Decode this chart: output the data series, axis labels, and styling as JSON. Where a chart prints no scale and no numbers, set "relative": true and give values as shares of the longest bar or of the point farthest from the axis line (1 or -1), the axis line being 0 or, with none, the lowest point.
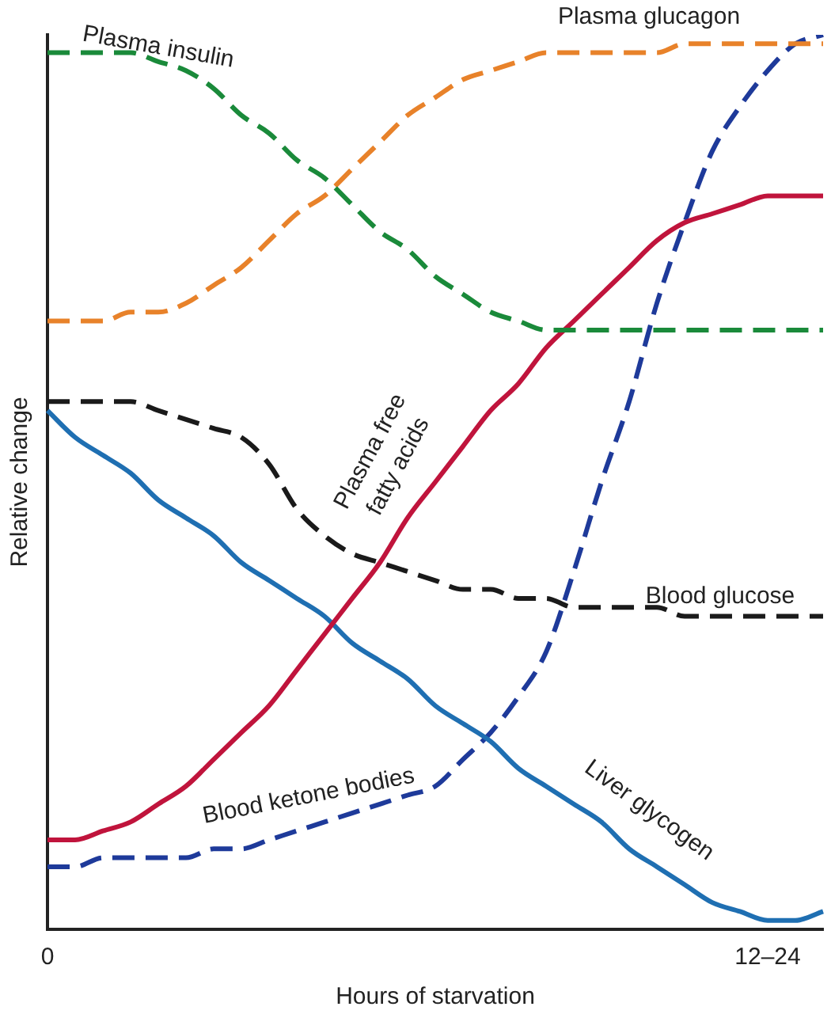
{
  "chart_data": {
    "type": "line",
    "relative": true,
    "xlabel": "Hours of starvation",
    "ylabel": "Relative change",
    "tick_labels": "x",
    "marker": "none",
    "categories": [
      "0",
      null,
      null,
      null,
      null,
      null,
      null,
      null,
      null,
      null,
      null,
      null,
      null,
      null,
      null,
      null,
      null,
      null,
      null,
      null,
      null,
      null,
      null,
      null,
      null,
      null,
      "12–24",
      null,
      null
    ],
    "series": [
      {
        "name": "Plasma insulin",
        "color": "#1a8a3a",
        "line_style": "dashed",
        "values": [
          0.98,
          0.98,
          0.98,
          0.98,
          0.97,
          0.96,
          0.94,
          0.91,
          0.89,
          0.86,
          0.84,
          0.81,
          0.78,
          0.76,
          0.73,
          0.71,
          0.69,
          0.68,
          0.67,
          0.67,
          0.67,
          0.67,
          0.67,
          0.67,
          0.67,
          0.67,
          0.67,
          0.67,
          0.67
        ]
      },
      {
        "name": "Plasma glucagon",
        "color": "#e8822a",
        "line_style": "dashed",
        "values": [
          0.68,
          0.68,
          0.68,
          0.69,
          0.69,
          0.7,
          0.72,
          0.74,
          0.77,
          0.8,
          0.82,
          0.85,
          0.88,
          0.91,
          0.93,
          0.95,
          0.96,
          0.97,
          0.98,
          0.98,
          0.98,
          0.98,
          0.98,
          0.99,
          0.99,
          0.99,
          0.99,
          0.99,
          0.99
        ]
      },
      {
        "name": "Plasma free fatty acids",
        "color": "#c0143c",
        "line_style": "solid",
        "values": [
          0.1,
          0.1,
          0.11,
          0.12,
          0.14,
          0.16,
          0.19,
          0.22,
          0.25,
          0.29,
          0.33,
          0.37,
          0.41,
          0.46,
          0.5,
          0.54,
          0.58,
          0.61,
          0.65,
          0.68,
          0.71,
          0.74,
          0.77,
          0.79,
          0.8,
          0.81,
          0.82,
          0.82,
          0.82
        ]
      },
      {
        "name": "Blood glucose",
        "color": "#1a1a1a",
        "line_style": "dashed",
        "values": [
          0.59,
          0.59,
          0.59,
          0.59,
          0.58,
          0.57,
          0.56,
          0.55,
          0.52,
          0.47,
          0.44,
          0.42,
          0.41,
          0.4,
          0.39,
          0.38,
          0.38,
          0.37,
          0.37,
          0.36,
          0.36,
          0.36,
          0.36,
          0.35,
          0.35,
          0.35,
          0.35,
          0.35,
          0.35
        ]
      },
      {
        "name": "Liver glycogen",
        "color": "#1f6fb2",
        "line_style": "solid",
        "values": [
          0.58,
          0.55,
          0.53,
          0.51,
          0.48,
          0.46,
          0.44,
          0.41,
          0.39,
          0.37,
          0.35,
          0.32,
          0.3,
          0.28,
          0.25,
          0.23,
          0.21,
          0.18,
          0.16,
          0.14,
          0.12,
          0.09,
          0.07,
          0.05,
          0.03,
          0.02,
          0.01,
          0.01,
          0.02
        ]
      },
      {
        "name": "Blood ketone bodies",
        "color": "#1e3a9a",
        "line_style": "dashed",
        "values": [
          0.07,
          0.07,
          0.08,
          0.08,
          0.08,
          0.08,
          0.09,
          0.09,
          0.1,
          0.11,
          0.12,
          0.13,
          0.14,
          0.15,
          0.16,
          0.19,
          0.22,
          0.26,
          0.31,
          0.4,
          0.5,
          0.59,
          0.7,
          0.79,
          0.87,
          0.92,
          0.96,
          0.99,
          1
        ]
      }
    ]
  }
}
